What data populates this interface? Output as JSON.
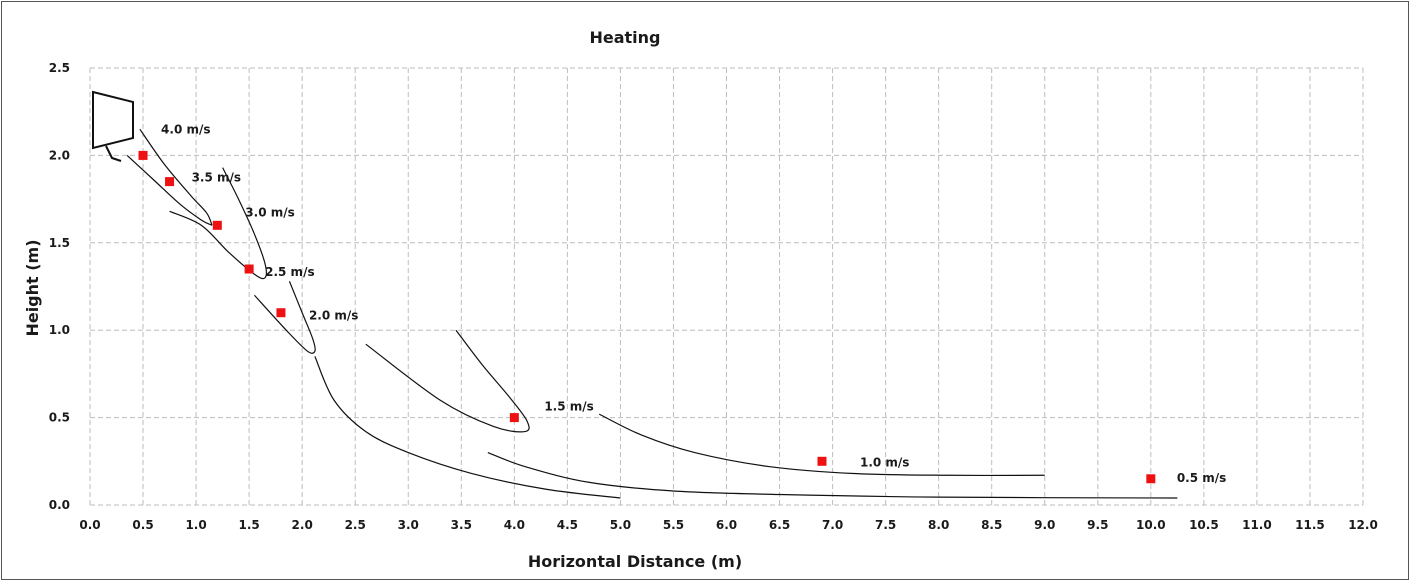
{
  "chart_data": {
    "type": "scatter",
    "title": "Heating",
    "xlabel": "Horizontal Distance (m)",
    "ylabel": "Height (m)",
    "xlim": [
      0,
      12
    ],
    "ylim": [
      0,
      2.5
    ],
    "x_ticks": [
      "0.0",
      "0.5",
      "1.0",
      "1.5",
      "2.0",
      "2.5",
      "3.0",
      "3.5",
      "4.0",
      "4.5",
      "5.0",
      "5.5",
      "6.0",
      "6.5",
      "7.0",
      "7.5",
      "8.0",
      "8.5",
      "9.0",
      "9.5",
      "10.0",
      "10.5",
      "11.0",
      "11.5",
      "12.0"
    ],
    "y_ticks": [
      "0.0",
      "0.5",
      "1.0",
      "1.5",
      "2.0",
      "2.5"
    ],
    "grid": true,
    "legend": "none",
    "point_color": "#ee1111",
    "points": [
      {
        "x": 0.5,
        "y": 2.0,
        "label": "4.0 m/s"
      },
      {
        "x": 0.75,
        "y": 1.85,
        "label": "3.5 m/s"
      },
      {
        "x": 1.2,
        "y": 1.6,
        "label": "3.0 m/s"
      },
      {
        "x": 1.5,
        "y": 1.35,
        "label": "2.5 m/s"
      },
      {
        "x": 1.8,
        "y": 1.1,
        "label": "2.0 m/s"
      },
      {
        "x": 4.0,
        "y": 0.5,
        "label": "1.5 m/s"
      },
      {
        "x": 6.9,
        "y": 0.25,
        "label": "1.0 m/s"
      },
      {
        "x": 10.0,
        "y": 0.15,
        "label": "0.5 m/s"
      }
    ],
    "isovel_curves": [
      [
        [
          0.47,
          2.15
        ],
        [
          0.7,
          1.95
        ],
        [
          0.95,
          1.77
        ],
        [
          1.1,
          1.67
        ],
        [
          1.15,
          1.6
        ]
      ],
      [
        [
          0.35,
          2.0
        ],
        [
          0.6,
          1.86
        ],
        [
          0.85,
          1.72
        ],
        [
          1.05,
          1.63
        ],
        [
          1.15,
          1.6
        ]
      ],
      [
        [
          1.25,
          1.93
        ],
        [
          1.4,
          1.75
        ],
        [
          1.55,
          1.55
        ],
        [
          1.65,
          1.38
        ],
        [
          1.65,
          1.3
        ],
        [
          1.55,
          1.32
        ],
        [
          1.3,
          1.45
        ],
        [
          1.05,
          1.6
        ],
        [
          0.75,
          1.68
        ]
      ],
      [
        [
          1.88,
          1.28
        ],
        [
          2.0,
          1.1
        ],
        [
          2.1,
          0.95
        ],
        [
          2.12,
          0.88
        ],
        [
          2.05,
          0.88
        ],
        [
          1.85,
          1.0
        ],
        [
          1.55,
          1.2
        ]
      ],
      [
        [
          2.12,
          0.85
        ],
        [
          2.3,
          0.6
        ],
        [
          2.6,
          0.42
        ],
        [
          3.0,
          0.3
        ],
        [
          3.6,
          0.18
        ],
        [
          4.3,
          0.09
        ],
        [
          5.0,
          0.04
        ]
      ],
      [
        [
          3.45,
          1.0
        ],
        [
          3.7,
          0.8
        ],
        [
          3.95,
          0.62
        ],
        [
          4.12,
          0.48
        ],
        [
          4.1,
          0.42
        ],
        [
          3.8,
          0.45
        ],
        [
          3.3,
          0.6
        ],
        [
          2.6,
          0.92
        ]
      ],
      [
        [
          4.8,
          0.52
        ],
        [
          5.2,
          0.4
        ],
        [
          5.7,
          0.3
        ],
        [
          6.4,
          0.22
        ],
        [
          7.2,
          0.18
        ],
        [
          8.1,
          0.17
        ],
        [
          9.0,
          0.17
        ]
      ],
      [
        [
          3.75,
          0.3
        ],
        [
          4.1,
          0.22
        ],
        [
          4.7,
          0.13
        ],
        [
          5.5,
          0.08
        ],
        [
          6.5,
          0.06
        ],
        [
          8.0,
          0.045
        ],
        [
          10.25,
          0.04
        ]
      ]
    ]
  }
}
